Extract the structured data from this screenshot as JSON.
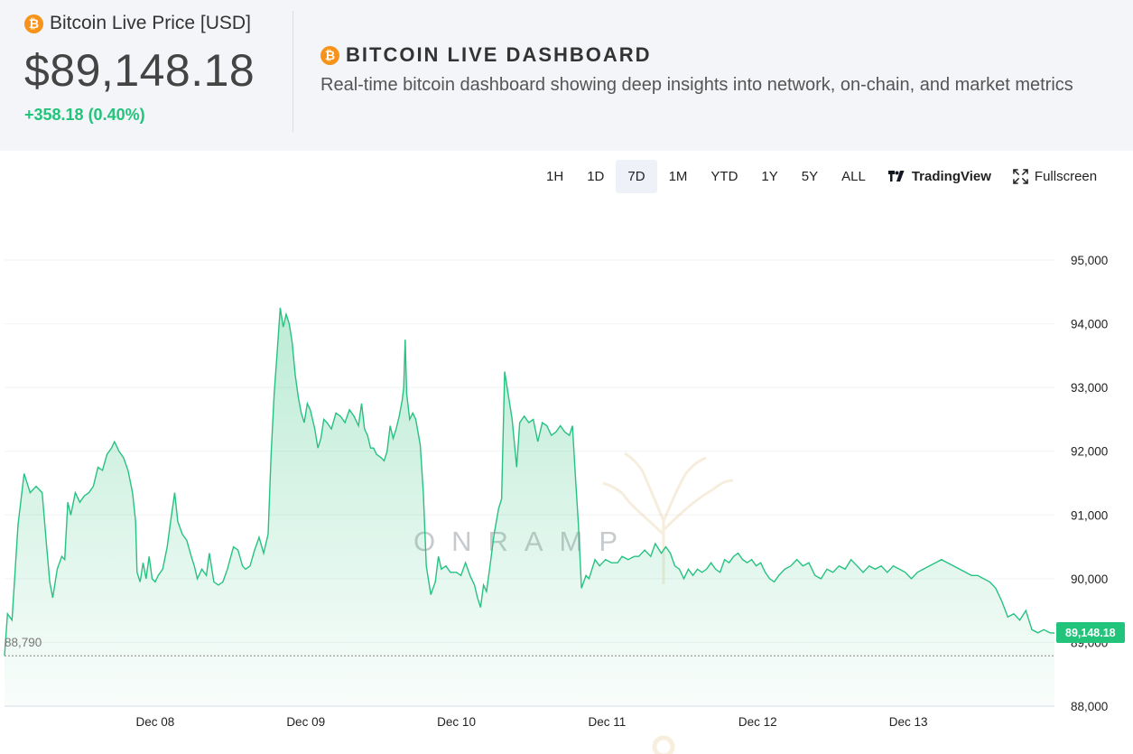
{
  "header": {
    "price_label": "Bitcoin Live Price [USD]",
    "price_value": "$89,148.18",
    "price_change": "+358.18 (0.40%)",
    "dashboard_title": "BITCOIN LIVE DASHBOARD",
    "dashboard_subtitle": "Real-time bitcoin dashboard showing deep insights into network, on-chain, and market metrics",
    "coin_symbol": "₿"
  },
  "toolbar": {
    "timeframes": [
      "1H",
      "1D",
      "7D",
      "1M",
      "YTD",
      "1Y",
      "5Y",
      "ALL"
    ],
    "active": "7D",
    "tradingview_label": "TradingView",
    "fullscreen_label": "Fullscreen"
  },
  "watermark": "ONRAMP",
  "colors": {
    "accent_green": "#22c37a",
    "line_green": "#26c281",
    "bitcoin_orange": "#f7931a"
  },
  "chart_data": {
    "type": "area",
    "x_range_days": [
      7.0,
      13.97
    ],
    "ylim": [
      88000,
      95000
    ],
    "yticks": [
      88000,
      89000,
      90000,
      91000,
      92000,
      93000,
      94000,
      95000
    ],
    "ytick_labels": [
      "88,000",
      "89,000",
      "90,000",
      "91,000",
      "92,000",
      "93,000",
      "94,000",
      "95,000"
    ],
    "xticks": [
      8,
      9,
      10,
      11,
      12,
      13
    ],
    "xtick_labels": [
      "Dec 08",
      "Dec 09",
      "Dec 10",
      "Dec 11",
      "Dec 12",
      "Dec 13"
    ],
    "baseline_value": 88790,
    "baseline_label": "88,790",
    "last_value": 89148.18,
    "last_label": "89,148.18",
    "grid": true,
    "series": [
      {
        "points": [
          [
            7.0,
            88790
          ],
          [
            7.02,
            89450
          ],
          [
            7.05,
            89350
          ],
          [
            7.09,
            90850
          ],
          [
            7.13,
            91650
          ],
          [
            7.17,
            91350
          ],
          [
            7.21,
            91450
          ],
          [
            7.25,
            91350
          ],
          [
            7.28,
            90500
          ],
          [
            7.3,
            89950
          ],
          [
            7.32,
            89700
          ],
          [
            7.35,
            90150
          ],
          [
            7.38,
            90350
          ],
          [
            7.4,
            90300
          ],
          [
            7.42,
            91200
          ],
          [
            7.44,
            91000
          ],
          [
            7.47,
            91350
          ],
          [
            7.5,
            91200
          ],
          [
            7.53,
            91300
          ],
          [
            7.56,
            91350
          ],
          [
            7.59,
            91450
          ],
          [
            7.62,
            91750
          ],
          [
            7.65,
            91700
          ],
          [
            7.68,
            91950
          ],
          [
            7.71,
            92050
          ],
          [
            7.73,
            92150
          ],
          [
            7.76,
            92000
          ],
          [
            7.79,
            91900
          ],
          [
            7.82,
            91700
          ],
          [
            7.85,
            91350
          ],
          [
            7.87,
            90900
          ],
          [
            7.88,
            90100
          ],
          [
            7.9,
            89950
          ],
          [
            7.92,
            90250
          ],
          [
            7.94,
            90000
          ],
          [
            7.96,
            90350
          ],
          [
            7.98,
            90000
          ],
          [
            8.0,
            89950
          ],
          [
            8.02,
            90050
          ],
          [
            8.05,
            90150
          ],
          [
            8.08,
            90500
          ],
          [
            8.1,
            90850
          ],
          [
            8.13,
            91350
          ],
          [
            8.15,
            90900
          ],
          [
            8.18,
            90700
          ],
          [
            8.21,
            90600
          ],
          [
            8.24,
            90350
          ],
          [
            8.26,
            90200
          ],
          [
            8.28,
            90000
          ],
          [
            8.31,
            90150
          ],
          [
            8.34,
            90050
          ],
          [
            8.36,
            90400
          ],
          [
            8.39,
            89950
          ],
          [
            8.42,
            89900
          ],
          [
            8.45,
            89950
          ],
          [
            8.48,
            90150
          ],
          [
            8.52,
            90500
          ],
          [
            8.55,
            90450
          ],
          [
            8.58,
            90200
          ],
          [
            8.6,
            90150
          ],
          [
            8.63,
            90200
          ],
          [
            8.66,
            90450
          ],
          [
            8.69,
            90650
          ],
          [
            8.72,
            90400
          ],
          [
            8.75,
            90700
          ],
          [
            8.77,
            91950
          ],
          [
            8.79,
            92900
          ],
          [
            8.81,
            93550
          ],
          [
            8.83,
            94250
          ],
          [
            8.85,
            93950
          ],
          [
            8.87,
            94150
          ],
          [
            8.89,
            94000
          ],
          [
            8.91,
            93700
          ],
          [
            8.93,
            93200
          ],
          [
            8.95,
            92850
          ],
          [
            8.97,
            92600
          ],
          [
            8.99,
            92450
          ],
          [
            9.01,
            92750
          ],
          [
            9.03,
            92650
          ],
          [
            9.06,
            92350
          ],
          [
            9.08,
            92050
          ],
          [
            9.1,
            92200
          ],
          [
            9.12,
            92500
          ],
          [
            9.14,
            92450
          ],
          [
            9.17,
            92350
          ],
          [
            9.2,
            92600
          ],
          [
            9.23,
            92550
          ],
          [
            9.26,
            92450
          ],
          [
            9.29,
            92650
          ],
          [
            9.32,
            92550
          ],
          [
            9.35,
            92400
          ],
          [
            9.37,
            92750
          ],
          [
            9.39,
            92350
          ],
          [
            9.41,
            92250
          ],
          [
            9.43,
            92050
          ],
          [
            9.45,
            92050
          ],
          [
            9.47,
            91950
          ],
          [
            9.5,
            91900
          ],
          [
            9.52,
            91850
          ],
          [
            9.54,
            92000
          ],
          [
            9.56,
            92400
          ],
          [
            9.58,
            92200
          ],
          [
            9.6,
            92350
          ],
          [
            9.62,
            92550
          ],
          [
            9.64,
            92800
          ],
          [
            9.65,
            93000
          ],
          [
            9.66,
            93750
          ],
          [
            9.67,
            92900
          ],
          [
            9.69,
            92500
          ],
          [
            9.71,
            92600
          ],
          [
            9.73,
            92500
          ],
          [
            9.76,
            92100
          ],
          [
            9.78,
            91350
          ],
          [
            9.8,
            90200
          ],
          [
            9.83,
            89750
          ],
          [
            9.86,
            89950
          ],
          [
            9.88,
            90350
          ],
          [
            9.9,
            90150
          ],
          [
            9.93,
            90200
          ],
          [
            9.96,
            90100
          ],
          [
            10.0,
            90100
          ],
          [
            10.03,
            90050
          ],
          [
            10.06,
            90250
          ],
          [
            10.09,
            90050
          ],
          [
            10.12,
            89900
          ],
          [
            10.14,
            89700
          ],
          [
            10.16,
            89550
          ],
          [
            10.18,
            89900
          ],
          [
            10.2,
            89800
          ],
          [
            10.22,
            90150
          ],
          [
            10.25,
            90700
          ],
          [
            10.28,
            91100
          ],
          [
            10.3,
            91250
          ],
          [
            10.32,
            93250
          ],
          [
            10.34,
            92950
          ],
          [
            10.37,
            92500
          ],
          [
            10.4,
            91750
          ],
          [
            10.42,
            92450
          ],
          [
            10.45,
            92550
          ],
          [
            10.48,
            92450
          ],
          [
            10.51,
            92500
          ],
          [
            10.54,
            92150
          ],
          [
            10.57,
            92450
          ],
          [
            10.6,
            92400
          ],
          [
            10.63,
            92250
          ],
          [
            10.66,
            92300
          ],
          [
            10.69,
            92400
          ],
          [
            10.72,
            92300
          ],
          [
            10.75,
            92250
          ],
          [
            10.77,
            92400
          ],
          [
            10.79,
            91600
          ],
          [
            10.81,
            90850
          ],
          [
            10.83,
            89850
          ],
          [
            10.86,
            90050
          ],
          [
            10.88,
            90000
          ],
          [
            10.92,
            90300
          ],
          [
            10.95,
            90200
          ],
          [
            10.99,
            90300
          ],
          [
            11.03,
            90250
          ],
          [
            11.07,
            90250
          ],
          [
            11.1,
            90350
          ],
          [
            11.14,
            90300
          ],
          [
            11.18,
            90350
          ],
          [
            11.21,
            90350
          ],
          [
            11.25,
            90450
          ],
          [
            11.29,
            90350
          ],
          [
            11.32,
            90550
          ],
          [
            11.36,
            90400
          ],
          [
            11.39,
            90500
          ],
          [
            11.42,
            90400
          ],
          [
            11.45,
            90200
          ],
          [
            11.48,
            90150
          ],
          [
            11.51,
            90000
          ],
          [
            11.54,
            90150
          ],
          [
            11.57,
            90050
          ],
          [
            11.6,
            90150
          ],
          [
            11.63,
            90100
          ],
          [
            11.66,
            90150
          ],
          [
            11.69,
            90250
          ],
          [
            11.72,
            90150
          ],
          [
            11.75,
            90100
          ],
          [
            11.78,
            90300
          ],
          [
            11.81,
            90250
          ],
          [
            11.84,
            90350
          ],
          [
            11.87,
            90400
          ],
          [
            11.9,
            90300
          ],
          [
            11.93,
            90250
          ],
          [
            11.96,
            90300
          ],
          [
            11.99,
            90200
          ],
          [
            12.02,
            90250
          ],
          [
            12.05,
            90100
          ],
          [
            12.08,
            90000
          ],
          [
            12.11,
            89950
          ],
          [
            12.14,
            90050
          ],
          [
            12.18,
            90150
          ],
          [
            12.22,
            90200
          ],
          [
            12.26,
            90300
          ],
          [
            12.3,
            90200
          ],
          [
            12.34,
            90250
          ],
          [
            12.38,
            90050
          ],
          [
            12.42,
            90000
          ],
          [
            12.46,
            90150
          ],
          [
            12.5,
            90100
          ],
          [
            12.54,
            90200
          ],
          [
            12.58,
            90150
          ],
          [
            12.62,
            90300
          ],
          [
            12.66,
            90200
          ],
          [
            12.7,
            90100
          ],
          [
            12.74,
            90200
          ],
          [
            12.78,
            90150
          ],
          [
            12.82,
            90200
          ],
          [
            12.86,
            90100
          ],
          [
            12.9,
            90200
          ],
          [
            12.94,
            90150
          ],
          [
            12.98,
            90100
          ],
          [
            13.02,
            90000
          ],
          [
            13.06,
            90100
          ],
          [
            13.1,
            90150
          ],
          [
            13.14,
            90200
          ],
          [
            13.18,
            90250
          ],
          [
            13.22,
            90300
          ],
          [
            13.26,
            90250
          ],
          [
            13.3,
            90200
          ],
          [
            13.34,
            90150
          ],
          [
            13.38,
            90100
          ],
          [
            13.42,
            90050
          ],
          [
            13.46,
            90050
          ],
          [
            13.5,
            90000
          ],
          [
            13.54,
            89950
          ],
          [
            13.58,
            89850
          ],
          [
            13.62,
            89650
          ],
          [
            13.66,
            89400
          ],
          [
            13.7,
            89450
          ],
          [
            13.74,
            89350
          ],
          [
            13.78,
            89500
          ],
          [
            13.82,
            89200
          ],
          [
            13.86,
            89150
          ],
          [
            13.9,
            89200
          ],
          [
            13.94,
            89150
          ],
          [
            13.97,
            89148.18
          ]
        ]
      }
    ]
  }
}
